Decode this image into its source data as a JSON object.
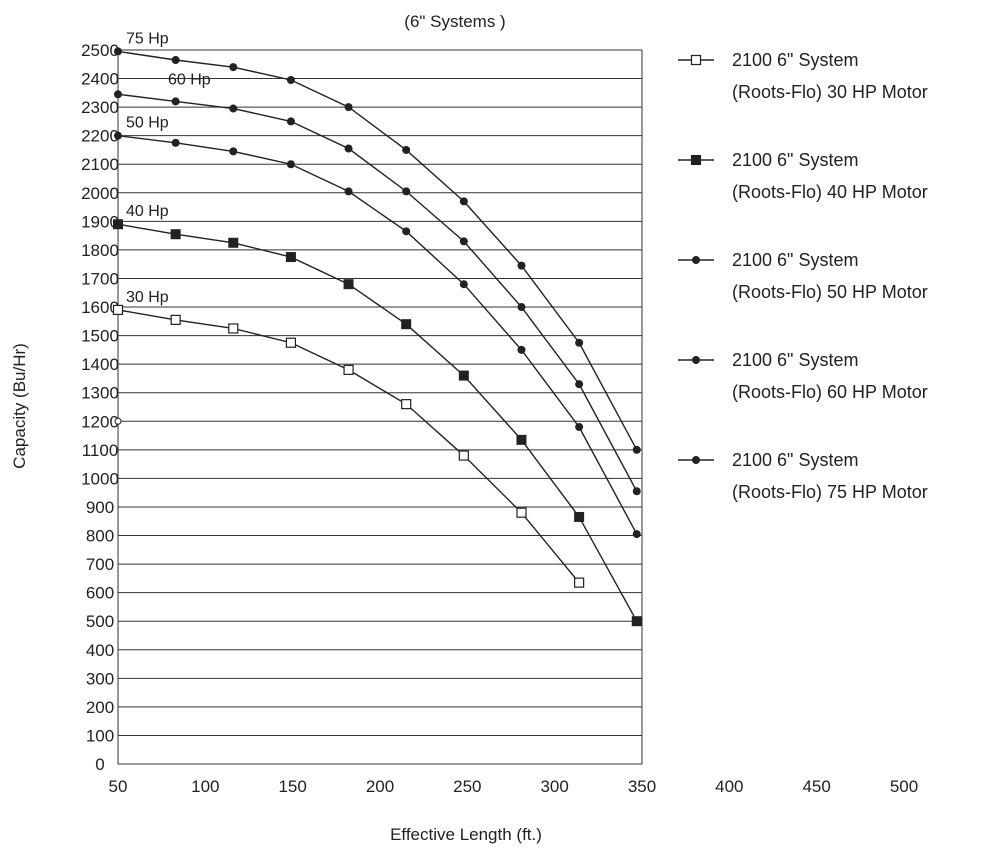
{
  "chart_data": {
    "type": "line",
    "title": "(6\" Systems )",
    "xlabel": "Effective Length (ft.)",
    "ylabel": "Capacity  (Bu/Hr)",
    "xlim": [
      50,
      500
    ],
    "ylim": [
      0,
      2500
    ],
    "x_ticks": [
      "50",
      "100",
      "150",
      "200",
      "250",
      "300",
      "350",
      "400",
      "450",
      "500"
    ],
    "y_ticks": [
      "0",
      "100",
      "200",
      "300",
      "400",
      "500",
      "600",
      "700",
      "800",
      "900",
      "1000",
      "1100",
      "1200",
      "1300",
      "1400",
      "1500",
      "1600",
      "1700",
      "1800",
      "1900",
      "2000",
      "2100",
      "2200",
      "2300",
      "2400",
      "2500"
    ],
    "grid": "horizontal",
    "legend_position": "right",
    "series": [
      {
        "name": "2100 6\" System (Roots-Flo) 30 HP Motor",
        "legend_lines": [
          "2100 6\" System",
          "(Roots-Flo) 30 HP Motor"
        ],
        "curve_label": "30 Hp",
        "marker": "open-square",
        "x": [
          50,
          83,
          116,
          149,
          182,
          215,
          248,
          281,
          314
        ],
        "y": [
          1590,
          1555,
          1525,
          1475,
          1380,
          1260,
          1080,
          880,
          635
        ]
      },
      {
        "name": "2100 6\" System (Roots-Flo) 40 HP Motor",
        "legend_lines": [
          "2100 6\" System",
          "(Roots-Flo) 40 HP Motor"
        ],
        "curve_label": "40 Hp",
        "marker": "filled-square",
        "x": [
          50,
          83,
          116,
          149,
          182,
          215,
          248,
          281,
          314,
          347
        ],
        "y": [
          1890,
          1855,
          1825,
          1775,
          1680,
          1540,
          1360,
          1135,
          865,
          500
        ]
      },
      {
        "name": "2100 6\" System (Roots-Flo) 50 HP Motor",
        "legend_lines": [
          "2100 6\" System",
          "(Roots-Flo) 50 HP Motor"
        ],
        "curve_label": "50 Hp",
        "marker": "filled-circle",
        "x": [
          50,
          83,
          116,
          149,
          182,
          215,
          248,
          281,
          314,
          347
        ],
        "y": [
          2200,
          2175,
          2145,
          2100,
          2005,
          1865,
          1680,
          1450,
          1180,
          805
        ]
      },
      {
        "name": "2100 6\" System (Roots-Flo) 60 HP Motor",
        "legend_lines": [
          "2100 6\" System",
          "(Roots-Flo) 60 HP Motor"
        ],
        "curve_label": "60 Hp",
        "marker": "filled-circle",
        "x": [
          50,
          83,
          116,
          149,
          182,
          215,
          248,
          281,
          314,
          347
        ],
        "y": [
          2345,
          2320,
          2295,
          2250,
          2155,
          2005,
          1830,
          1600,
          1330,
          955
        ]
      },
      {
        "name": "2100 6\" System (Roots-Flo) 75 HP Motor",
        "legend_lines": [
          "2100 6\" System",
          "(Roots-Flo) 75 HP Motor"
        ],
        "curve_label": "75 Hp",
        "marker": "filled-circle",
        "x": [
          50,
          83,
          116,
          149,
          182,
          215,
          248,
          281,
          314,
          347
        ],
        "y": [
          2495,
          2465,
          2440,
          2395,
          2300,
          2150,
          1970,
          1745,
          1475,
          1100
        ]
      }
    ],
    "extra_points": [
      {
        "x": 50,
        "y": 1200,
        "marker": "open-circle"
      }
    ]
  }
}
